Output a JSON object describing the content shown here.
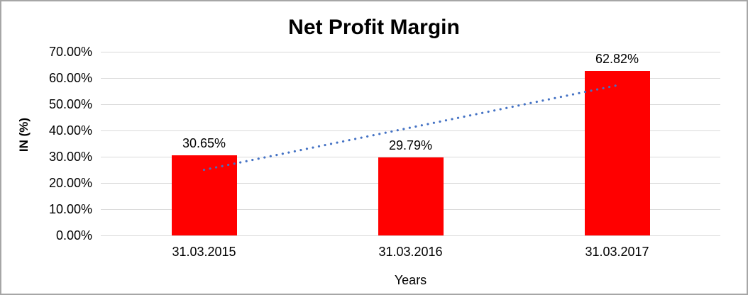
{
  "chart_data": {
    "type": "bar",
    "title": "Net Profit Margin",
    "xlabel": "Years",
    "ylabel": "IN (%)",
    "categories": [
      "31.03.2015",
      "31.03.2016",
      "31.03.2017"
    ],
    "values": [
      30.65,
      29.79,
      62.82
    ],
    "data_labels": [
      "30.65%",
      "29.79%",
      "62.82%"
    ],
    "y_ticks": [
      {
        "label": "70.00%",
        "value": 70
      },
      {
        "label": "60.00%",
        "value": 60
      },
      {
        "label": "50.00%",
        "value": 50
      },
      {
        "label": "40.00%",
        "value": 40
      },
      {
        "label": "30.00%",
        "value": 30
      },
      {
        "label": "20.00%",
        "value": 20
      },
      {
        "label": "10.00%",
        "value": 10
      },
      {
        "label": "0.00%",
        "value": 0
      }
    ],
    "ylim": [
      0,
      70
    ],
    "grid": "horizontal",
    "legend": "none",
    "colors": {
      "bar": "#ff0000",
      "trendline": "#4472c4",
      "gridline": "#d9d9d9",
      "text": "#000000"
    },
    "trendline": {
      "type": "linear",
      "style": "dotted",
      "start_value": 25.0,
      "end_value": 57.2
    }
  }
}
